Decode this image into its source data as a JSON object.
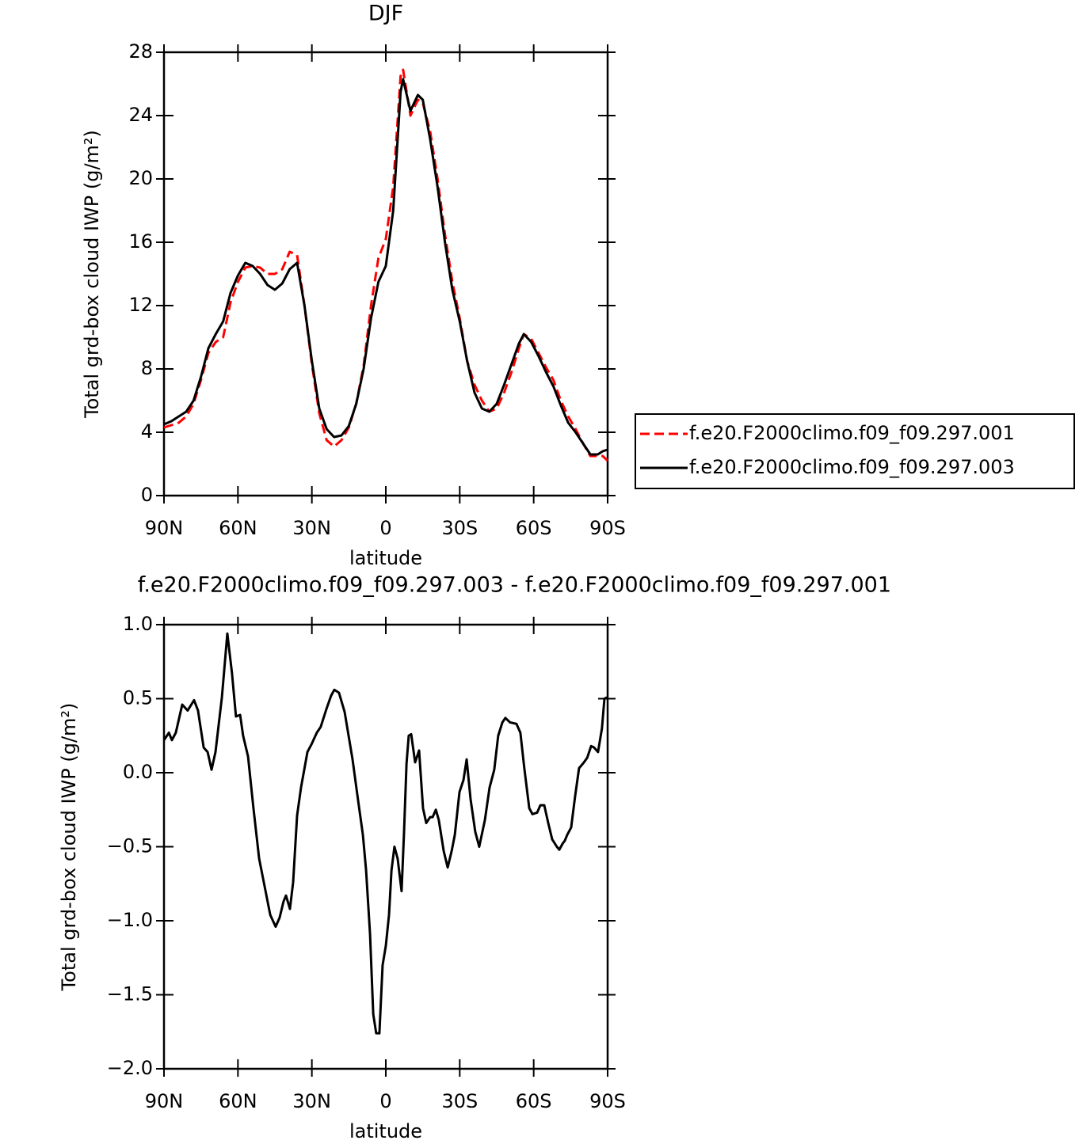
{
  "chart_data": [
    {
      "type": "line",
      "title": "DJF",
      "xlabel": "latitude",
      "ylabel": "Total grd-box cloud IWP (g/m²)",
      "x": [
        90,
        87,
        84,
        81,
        78,
        75,
        72,
        69,
        66,
        63,
        60,
        57,
        54,
        51,
        48,
        45,
        42,
        39,
        36,
        33,
        30,
        27,
        24,
        21,
        18,
        15,
        12,
        9,
        6,
        3,
        0,
        -3,
        -6,
        -7,
        -10,
        -13,
        -15,
        -18,
        -21,
        -24,
        -27,
        -30,
        -33,
        -36,
        -39,
        -42,
        -45,
        -48,
        -51,
        -54,
        -56,
        -59,
        -62,
        -65,
        -68,
        -71,
        -74,
        -77,
        -80,
        -83,
        -86,
        -88,
        -90
      ],
      "series": [
        {
          "name": "f.e20.F2000climo.f09_f09.297.001",
          "color": "#ff0000",
          "dash": true,
          "values": [
            4.3,
            4.45,
            4.6,
            5.0,
            5.8,
            7.3,
            9.0,
            9.7,
            10.0,
            12.2,
            13.5,
            14.4,
            14.5,
            14.4,
            14.0,
            14.0,
            14.3,
            15.4,
            15.2,
            12.0,
            8.3,
            5.2,
            3.5,
            3.1,
            3.5,
            4.3,
            5.8,
            8.2,
            12.0,
            15.0,
            16.2,
            19.5,
            26.5,
            26.9,
            24.0,
            25.0,
            24.8,
            23.0,
            20.0,
            16.5,
            13.5,
            11.2,
            8.5,
            7.0,
            6.0,
            5.3,
            5.5,
            6.5,
            7.8,
            9.3,
            10.2,
            9.9,
            9.0,
            8.1,
            7.3,
            6.0,
            5.0,
            4.2,
            3.3,
            2.5,
            2.5,
            2.5,
            2.2
          ]
        },
        {
          "name": "f.e20.F2000climo.f09_f09.297.003",
          "color": "#000000",
          "dash": false,
          "values": [
            4.5,
            4.7,
            5.0,
            5.3,
            6.0,
            7.5,
            9.3,
            10.2,
            11.0,
            12.8,
            13.9,
            14.7,
            14.5,
            14.0,
            13.3,
            13.0,
            13.4,
            14.3,
            14.7,
            12.0,
            8.5,
            5.5,
            4.2,
            3.7,
            3.8,
            4.4,
            5.8,
            8.0,
            11.2,
            13.5,
            14.5,
            18.0,
            25.5,
            26.3,
            24.3,
            25.3,
            25.0,
            22.5,
            19.5,
            16.0,
            13.0,
            11.0,
            8.5,
            6.5,
            5.5,
            5.3,
            5.8,
            7.0,
            8.3,
            9.6,
            10.2,
            9.7,
            8.8,
            7.8,
            6.9,
            5.7,
            4.6,
            4.0,
            3.3,
            2.6,
            2.6,
            2.8,
            2.9
          ]
        }
      ],
      "xlim": [
        90,
        -90
      ],
      "xticks": [
        {
          "value": 90,
          "label": "90N"
        },
        {
          "value": 60,
          "label": "60N"
        },
        {
          "value": 30,
          "label": "30N"
        },
        0,
        {
          "value": -30,
          "label": "30S"
        },
        {
          "value": -60,
          "label": "60S"
        },
        {
          "value": -90,
          "label": "90S"
        }
      ],
      "ylim": [
        0,
        28
      ],
      "yticks": [
        0,
        4,
        8,
        12,
        16,
        20,
        24,
        28
      ],
      "legend": "right"
    },
    {
      "type": "line",
      "title": "f.e20.F2000climo.f09_f09.297.003 - f.e20.F2000climo.f09_f09.297.001",
      "xlabel": "latitude",
      "ylabel": "Total grd-box cloud IWP (g/m²)",
      "x": [
        90,
        88,
        86.8,
        85.2,
        82.6,
        80.4,
        77.8,
        76.2,
        73.9,
        72.3,
        70.7,
        69.1,
        66.5,
        64.3,
        62.4,
        60.8,
        59.1,
        57.9,
        55.9,
        53.7,
        51.4,
        49.5,
        46.9,
        44.7,
        43.1,
        41.5,
        40.5,
        38.9,
        37.6,
        36,
        34.4,
        31.8,
        30.2,
        28,
        26.4,
        24.1,
        22.2,
        20.9,
        19,
        16.7,
        13.5,
        11.3,
        9.3,
        8,
        6.4,
        5.1,
        3.9,
        2.6,
        1.3,
        0,
        -1.3,
        -2.3,
        -3.5,
        -4.8,
        -6.4,
        -7.4,
        -8.4,
        -9.3,
        -10.3,
        -11.9,
        -13.5,
        -15.1,
        -16.4,
        -18,
        -19,
        -20.3,
        -21.5,
        -23.5,
        -25.1,
        -26.7,
        -28,
        -29.9,
        -31.5,
        -32.8,
        -34.4,
        -36.3,
        -37.9,
        -40.2,
        -42.1,
        -44,
        -45.6,
        -47.3,
        -48.5,
        -50.4,
        -53,
        -54.6,
        -56.2,
        -58.2,
        -59.5,
        -61.4,
        -62.7,
        -64.3,
        -65.9,
        -67.5,
        -69.4,
        -70.4,
        -71.7,
        -72.6,
        -73.6,
        -75.2,
        -76.8,
        -78.4,
        -80.4,
        -81.7,
        -83.3,
        -84.5,
        -86.1,
        -87.7,
        -88.7,
        -90
      ],
      "values": [
        0.22,
        0.27,
        0.22,
        0.27,
        0.46,
        0.42,
        0.49,
        0.42,
        0.17,
        0.14,
        0.02,
        0.14,
        0.51,
        0.94,
        0.67,
        0.38,
        0.39,
        0.25,
        0.11,
        -0.24,
        -0.58,
        -0.74,
        -0.96,
        -1.04,
        -0.98,
        -0.87,
        -0.83,
        -0.92,
        -0.74,
        -0.29,
        -0.1,
        0.14,
        0.19,
        0.27,
        0.31,
        0.43,
        0.52,
        0.56,
        0.54,
        0.41,
        0.09,
        -0.18,
        -0.42,
        -0.66,
        -1.09,
        -1.63,
        -1.76,
        -1.76,
        -1.3,
        -1.17,
        -0.96,
        -0.66,
        -0.5,
        -0.58,
        -0.8,
        -0.4,
        0.06,
        0.25,
        0.26,
        0.07,
        0.15,
        -0.24,
        -0.34,
        -0.3,
        -0.3,
        -0.25,
        -0.32,
        -0.53,
        -0.64,
        -0.53,
        -0.42,
        -0.13,
        -0.05,
        0.09,
        -0.18,
        -0.4,
        -0.5,
        -0.32,
        -0.1,
        0.02,
        0.25,
        0.34,
        0.37,
        0.34,
        0.33,
        0.27,
        0.03,
        -0.24,
        -0.28,
        -0.27,
        -0.22,
        -0.22,
        -0.34,
        -0.45,
        -0.5,
        -0.52,
        -0.48,
        -0.46,
        -0.42,
        -0.37,
        -0.16,
        0.03,
        0.07,
        0.1,
        0.18,
        0.17,
        0.14,
        0.3,
        0.5,
        0.51
      ],
      "color": "#000000",
      "xlim": [
        90,
        -90
      ],
      "xticks": [
        {
          "value": 90,
          "label": "90N"
        },
        {
          "value": 60,
          "label": "60N"
        },
        {
          "value": 30,
          "label": "30N"
        },
        0,
        {
          "value": -30,
          "label": "30S"
        },
        {
          "value": -60,
          "label": "60S"
        },
        {
          "value": -90,
          "label": "90S"
        }
      ],
      "ylim": [
        -2.0,
        1.0
      ],
      "yticks": [
        {
          "value": 1.0,
          "label": "1.0"
        },
        0.5,
        {
          "value": 0.0,
          "label": "0.0"
        },
        {
          "value": -0.5,
          "label": "−0.5"
        },
        {
          "value": -1.0,
          "label": "−1.0"
        },
        {
          "value": -1.5,
          "label": "−1.5"
        },
        {
          "value": -2.0,
          "label": "−2.0"
        }
      ]
    }
  ]
}
